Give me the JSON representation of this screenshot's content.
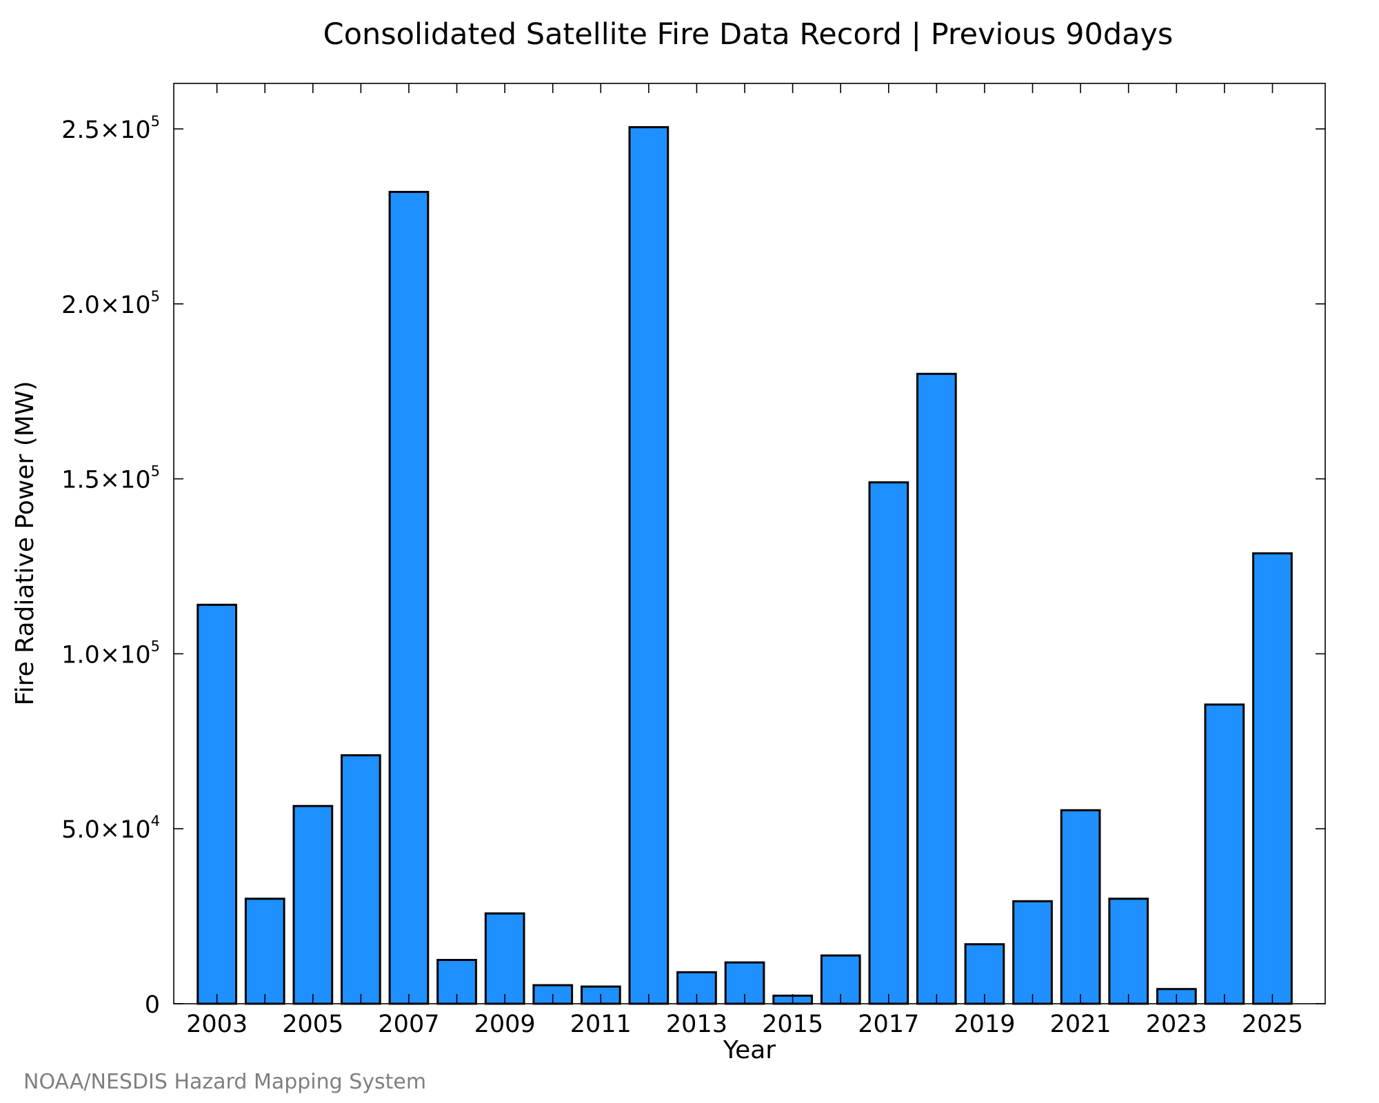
{
  "chart_data": {
    "type": "bar",
    "title": "Consolidated Satellite Fire Data Record | Previous 90days",
    "xlabel": "Year",
    "ylabel": "Fire Radiative Power (MW)",
    "credit": "NOAA/NESDIS Hazard Mapping System",
    "categories": [
      "2003",
      "2004",
      "2005",
      "2006",
      "2007",
      "2008",
      "2009",
      "2010",
      "2011",
      "2012",
      "2013",
      "2014",
      "2015",
      "2016",
      "2017",
      "2018",
      "2019",
      "2020",
      "2021",
      "2022",
      "2023",
      "2024",
      "2025"
    ],
    "values": [
      114000,
      30000,
      56500,
      71000,
      232000,
      12500,
      25800,
      5300,
      4900,
      250500,
      9000,
      11800,
      2300,
      13800,
      149000,
      180000,
      17000,
      29300,
      55300,
      30000,
      4200,
      85500,
      128700
    ],
    "x_tick_labels": [
      "2003",
      "2005",
      "2007",
      "2009",
      "2011",
      "2013",
      "2015",
      "2017",
      "2019",
      "2021",
      "2023",
      "2025"
    ],
    "y_ticks": [
      {
        "value": 0,
        "mantissa": "0",
        "exponent": ""
      },
      {
        "value": 50000,
        "mantissa": "5.0×10",
        "exponent": "4"
      },
      {
        "value": 100000,
        "mantissa": "1.0×10",
        "exponent": "5"
      },
      {
        "value": 150000,
        "mantissa": "1.5×10",
        "exponent": "5"
      },
      {
        "value": 200000,
        "mantissa": "2.0×10",
        "exponent": "5"
      },
      {
        "value": 250000,
        "mantissa": "2.5×10",
        "exponent": "5"
      }
    ],
    "ylim": [
      0,
      263000
    ],
    "xlim": [
      2002.1,
      2026.1
    ],
    "bar_color": "#1e90ff",
    "bar_edge_color": "#000000",
    "grid": false,
    "legend": "none"
  }
}
